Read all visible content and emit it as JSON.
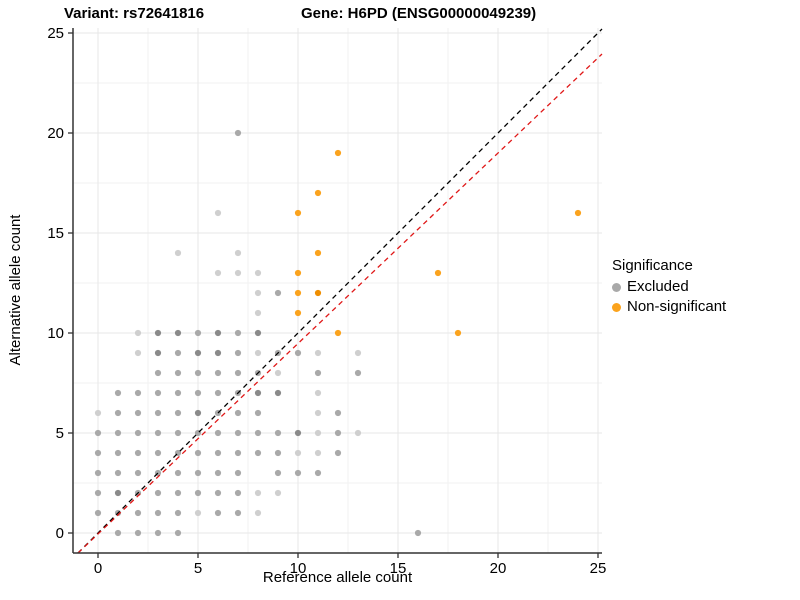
{
  "header": {
    "title_left": "Variant: rs72641816",
    "title_right": "Gene: H6PD (ENSG00000049239)"
  },
  "chart_data": {
    "type": "scatter",
    "title_left": "Variant: rs72641816",
    "title_right": "Gene: H6PD (ENSG00000049239)",
    "xlabel": "Reference allele count",
    "ylabel": "Alternative allele count",
    "xlim": [
      -1.25,
      25.2
    ],
    "ylim": [
      -1.0,
      25.25
    ],
    "x_ticks": [
      0,
      5,
      10,
      15,
      20,
      25
    ],
    "y_ticks": [
      0,
      5,
      10,
      15,
      20,
      25
    ],
    "minor_gridlines": [
      2.5,
      7.5,
      12.5,
      17.5,
      22.5
    ],
    "grid": true,
    "legend": {
      "title": "Significance",
      "position": "right",
      "items": [
        {
          "label": "Excluded",
          "color": "#a9a9a9"
        },
        {
          "label": "Non-significant",
          "color": "#fba31d"
        }
      ]
    },
    "shade_colors": {
      "l": "#cfcfcf",
      "m": "#a9a9a9",
      "d": "#8a8a8a",
      "o": "#fba31d",
      "od": "#ef8e00"
    },
    "series": [
      {
        "name": "Excluded",
        "color": "#a9a9a9",
        "default_shade": "m",
        "points": [
          [
            1,
            0
          ],
          [
            2,
            0
          ],
          [
            3,
            0
          ],
          [
            4,
            0
          ],
          [
            16,
            0
          ],
          [
            0,
            1
          ],
          [
            1,
            1
          ],
          [
            2,
            1
          ],
          [
            3,
            1
          ],
          [
            4,
            1
          ],
          [
            5,
            1,
            "l"
          ],
          [
            6,
            1
          ],
          [
            7,
            1
          ],
          [
            8,
            1,
            "l"
          ],
          [
            0,
            2
          ],
          [
            1,
            2,
            "d"
          ],
          [
            2,
            2
          ],
          [
            3,
            2
          ],
          [
            4,
            2
          ],
          [
            5,
            2
          ],
          [
            6,
            2
          ],
          [
            7,
            2
          ],
          [
            8,
            2,
            "l"
          ],
          [
            9,
            2,
            "l"
          ],
          [
            0,
            3
          ],
          [
            1,
            3
          ],
          [
            2,
            3
          ],
          [
            3,
            3
          ],
          [
            4,
            3
          ],
          [
            5,
            3
          ],
          [
            6,
            3
          ],
          [
            7,
            3
          ],
          [
            9,
            3
          ],
          [
            10,
            3
          ],
          [
            11,
            3
          ],
          [
            0,
            4
          ],
          [
            1,
            4
          ],
          [
            2,
            4
          ],
          [
            3,
            4
          ],
          [
            4,
            4
          ],
          [
            5,
            4
          ],
          [
            6,
            4
          ],
          [
            7,
            4
          ],
          [
            8,
            4
          ],
          [
            9,
            4
          ],
          [
            10,
            4,
            "l"
          ],
          [
            11,
            4,
            "l"
          ],
          [
            12,
            4
          ],
          [
            0,
            5
          ],
          [
            1,
            5
          ],
          [
            2,
            5
          ],
          [
            3,
            5
          ],
          [
            4,
            5
          ],
          [
            5,
            5
          ],
          [
            6,
            5
          ],
          [
            7,
            5
          ],
          [
            8,
            5
          ],
          [
            9,
            5
          ],
          [
            10,
            5,
            "d"
          ],
          [
            11,
            5,
            "l"
          ],
          [
            12,
            5
          ],
          [
            13,
            5,
            "l"
          ],
          [
            0,
            6,
            "l"
          ],
          [
            1,
            6
          ],
          [
            2,
            6
          ],
          [
            3,
            6
          ],
          [
            4,
            6
          ],
          [
            5,
            6,
            "d"
          ],
          [
            6,
            6
          ],
          [
            7,
            6
          ],
          [
            8,
            6
          ],
          [
            11,
            6,
            "l"
          ],
          [
            12,
            6
          ],
          [
            1,
            7
          ],
          [
            2,
            7
          ],
          [
            3,
            7
          ],
          [
            4,
            7
          ],
          [
            5,
            7
          ],
          [
            6,
            7
          ],
          [
            7,
            7
          ],
          [
            8,
            7,
            "d"
          ],
          [
            9,
            7,
            "d"
          ],
          [
            11,
            7,
            "l"
          ],
          [
            3,
            8
          ],
          [
            4,
            8
          ],
          [
            5,
            8
          ],
          [
            6,
            8
          ],
          [
            7,
            8
          ],
          [
            8,
            8
          ],
          [
            9,
            8,
            "l"
          ],
          [
            11,
            8
          ],
          [
            13,
            8
          ],
          [
            2,
            9,
            "l"
          ],
          [
            3,
            9,
            "d"
          ],
          [
            4,
            9
          ],
          [
            5,
            9,
            "d"
          ],
          [
            6,
            9,
            "d"
          ],
          [
            7,
            9
          ],
          [
            8,
            9,
            "l"
          ],
          [
            9,
            9
          ],
          [
            10,
            9
          ],
          [
            11,
            9,
            "l"
          ],
          [
            13,
            9,
            "l"
          ],
          [
            2,
            10,
            "l"
          ],
          [
            3,
            10,
            "d"
          ],
          [
            4,
            10,
            "d"
          ],
          [
            5,
            10
          ],
          [
            6,
            10,
            "d"
          ],
          [
            7,
            10
          ],
          [
            8,
            10,
            "d"
          ],
          [
            8,
            11,
            "l"
          ],
          [
            8,
            12,
            "l"
          ],
          [
            9,
            12
          ],
          [
            6,
            13,
            "l"
          ],
          [
            7,
            13,
            "l"
          ],
          [
            8,
            13,
            "l"
          ],
          [
            4,
            14,
            "l"
          ],
          [
            7,
            14,
            "l"
          ],
          [
            6,
            16,
            "l"
          ],
          [
            7,
            20
          ]
        ]
      },
      {
        "name": "Non-significant",
        "color": "#fba31d",
        "default_shade": "o",
        "points": [
          [
            12,
            10
          ],
          [
            18,
            10
          ],
          [
            10,
            11
          ],
          [
            10,
            12
          ],
          [
            11,
            12,
            "od"
          ],
          [
            10,
            13
          ],
          [
            17,
            13
          ],
          [
            11,
            14
          ],
          [
            10,
            16
          ],
          [
            24,
            16
          ],
          [
            11,
            17
          ],
          [
            12,
            19
          ]
        ]
      }
    ],
    "lines": [
      {
        "name": "identity-line",
        "color": "#000000",
        "x1": -1.0,
        "y1": -1.0,
        "x2": 25.2,
        "y2": 25.2
      },
      {
        "name": "fit-line",
        "color": "#e01818",
        "x1": -1.0,
        "y1": -1.0,
        "x2": 25.2,
        "y2": 23.95
      }
    ]
  },
  "colors": {
    "grid_major": "#e7e7e7",
    "grid_minor": "#f2f2f2",
    "axis": "#333333",
    "tick_text": "#000000"
  }
}
